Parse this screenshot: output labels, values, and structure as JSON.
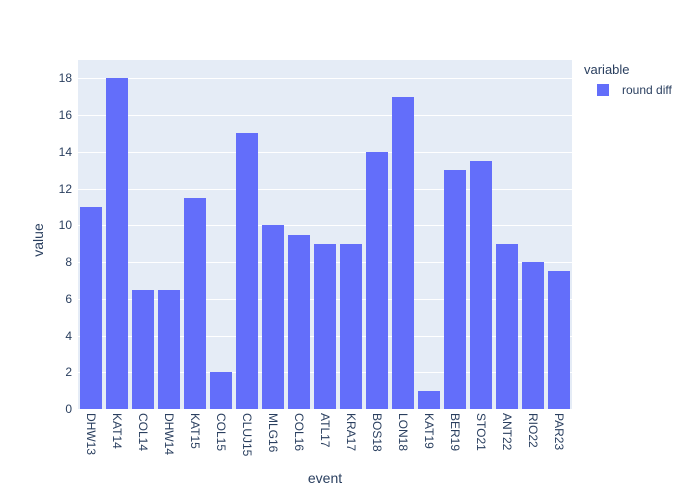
{
  "chart_data": {
    "type": "bar",
    "xlabel": "event",
    "ylabel": "value",
    "legend_title": "variable",
    "categories": [
      "DHW13",
      "KAT14",
      "COL14",
      "DHW14",
      "KAT15",
      "COL15",
      "CLUJ15",
      "MLG16",
      "COL16",
      "ATL17",
      "KRA17",
      "BOS18",
      "LON18",
      "KAT19",
      "BER19",
      "STO21",
      "ANT22",
      "RIO22",
      "PAR23"
    ],
    "series": [
      {
        "name": "round diff",
        "color": "#636EFA",
        "values": [
          11,
          18,
          6.5,
          6.5,
          11.5,
          2,
          15,
          10,
          9.5,
          9,
          9,
          14,
          17,
          1,
          13,
          13.5,
          9,
          8,
          7.5
        ]
      }
    ],
    "ylim": [
      0,
      19
    ],
    "yticks": [
      0,
      2,
      4,
      6,
      8,
      10,
      12,
      14,
      16,
      18
    ],
    "grid": true,
    "legend_position": "right",
    "colors": {
      "plot_background": "#E5ECF6",
      "paper_background": "#FFFFFF",
      "gridline": "#FFFFFF",
      "text": "#2A3F5F"
    }
  }
}
